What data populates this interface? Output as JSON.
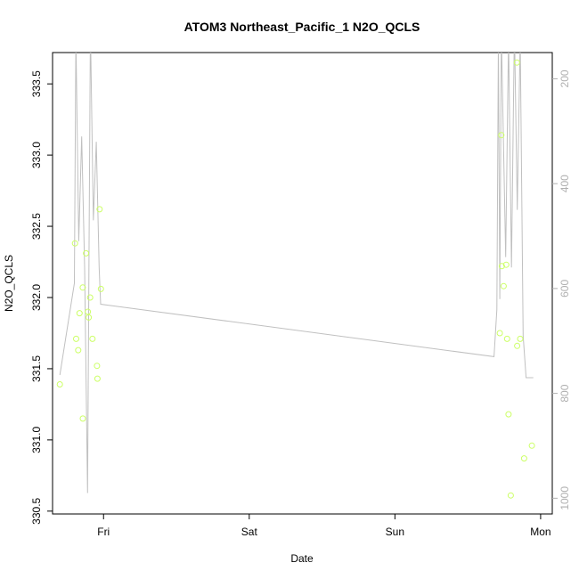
{
  "chart_data": {
    "type": "scatter",
    "title": "ATOM3 Northeast_Pacific_1 N2O_QCLS",
    "xlabel": "Date",
    "ylabel": "N2O_QCLS",
    "y2label": "",
    "x_ticks": [
      {
        "label": "Fri",
        "value": 0.0
      },
      {
        "label": "Sat",
        "value": 1.0
      },
      {
        "label": "Sun",
        "value": 2.0
      },
      {
        "label": "Mon",
        "value": 3.0
      }
    ],
    "xlim": [
      -0.35,
      3.08
    ],
    "ylim": [
      330.48,
      333.72
    ],
    "y_ticks": [
      330.5,
      331.0,
      331.5,
      332.0,
      332.5,
      333.0,
      333.5
    ],
    "y_tick_labels": [
      "330.5",
      "331.0",
      "331.5",
      "332.0",
      "332.5",
      "333.0",
      "333.5"
    ],
    "y2lim": [
      1030,
      150
    ],
    "y2_ticks": [
      200,
      400,
      600,
      800,
      1000
    ],
    "y2_tick_labels": [
      "200",
      "400",
      "600",
      "800",
      "1000"
    ],
    "grid": false,
    "colors": {
      "points": "#ccff66",
      "pressure_line": "#c0c0c0",
      "axis": "#000000",
      "right_axis": "#b0b0b0"
    },
    "series": [
      {
        "role": "points",
        "x": [
          -0.3,
          -0.196,
          -0.188,
          -0.174,
          -0.165,
          -0.143,
          -0.142,
          -0.12,
          -0.108,
          -0.102,
          -0.092,
          -0.076,
          -0.045,
          -0.042,
          -0.027,
          -0.018,
          2.72,
          2.73,
          2.734,
          2.746,
          2.764,
          2.78,
          2.795,
          2.839,
          2.86
        ],
        "y": [
          331.39,
          332.38,
          331.71,
          331.63,
          331.89,
          332.07,
          331.15,
          332.31,
          331.9,
          331.86,
          332.0,
          331.71,
          331.52,
          331.43,
          332.62,
          332.06,
          331.75,
          333.14,
          332.22,
          332.08,
          332.23,
          331.18,
          330.61,
          331.66,
          331.71
        ]
      },
      {
        "role": "points-extra",
        "x": [
          2.77,
          2.837,
          2.887,
          2.94
        ],
        "y": [
          331.71,
          333.65,
          330.87,
          330.96
        ]
      },
      {
        "role": "line",
        "y_axis": "right",
        "x": [
          -0.3,
          -0.2,
          -0.19,
          -0.17,
          -0.15,
          -0.13,
          -0.11,
          -0.09,
          -0.07,
          -0.05,
          -0.03,
          -0.02,
          2.68,
          2.7,
          2.71,
          2.72,
          2.73,
          2.76,
          2.78,
          2.8,
          2.82,
          2.84,
          2.86,
          2.88,
          2.9,
          2.95
        ],
        "y": [
          765,
          590,
          120,
          510,
          310,
          560,
          990,
          100,
          470,
          320,
          560,
          630,
          730,
          640,
          120,
          620,
          110,
          540,
          120,
          560,
          100,
          450,
          120,
          690,
          770,
          770
        ]
      }
    ]
  }
}
